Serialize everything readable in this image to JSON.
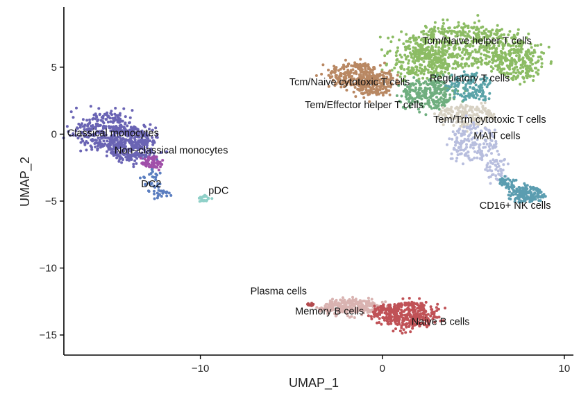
{
  "chart_data": {
    "type": "scatter",
    "title": "",
    "xlabel": "UMAP_1",
    "ylabel": "UMAP_2",
    "xlim": [
      -17.5,
      10.5
    ],
    "ylim": [
      -16.5,
      9.5
    ],
    "xticks": [
      -10,
      0,
      10
    ],
    "yticks": [
      5,
      0,
      -5,
      -10,
      -15
    ],
    "xtick_labels": [
      "−10",
      "0",
      "10"
    ],
    "ytick_labels": [
      "5",
      "0",
      "−5",
      "−10",
      "−15"
    ],
    "grid": false,
    "legend": "none",
    "series": [
      {
        "name": "Classical monocytes",
        "color": "#6a64b4",
        "n": 650,
        "ellipses": [
          {
            "cx": -15.2,
            "cy": 0.2,
            "rx": 1.7,
            "ry": 1.4,
            "w": 0.5
          },
          {
            "cx": -13.8,
            "cy": -0.8,
            "rx": 1.3,
            "ry": 1.2,
            "w": 0.5
          }
        ]
      },
      {
        "name": "Non-classical monocytes",
        "color": "#a04fa9",
        "n": 70,
        "ellipses": [
          {
            "cx": -12.6,
            "cy": -2.1,
            "rx": 0.6,
            "ry": 0.45,
            "w": 1
          }
        ]
      },
      {
        "name": "DC2",
        "color": "#5b7ec0",
        "n": 50,
        "ellipses": [
          {
            "cx": -12.7,
            "cy": -3.5,
            "rx": 0.5,
            "ry": 0.9,
            "w": 0.5
          },
          {
            "cx": -12.1,
            "cy": -4.5,
            "rx": 0.4,
            "ry": 0.35,
            "w": 0.5
          }
        ]
      },
      {
        "name": "pDC",
        "color": "#8fd0c8",
        "n": 25,
        "ellipses": [
          {
            "cx": -9.7,
            "cy": -4.8,
            "rx": 0.35,
            "ry": 0.22,
            "w": 1
          }
        ]
      },
      {
        "name": "Tcm/Naive helper T cells",
        "color": "#8cbc64",
        "n": 1000,
        "ellipses": [
          {
            "cx": 4.5,
            "cy": 6.6,
            "rx": 3.3,
            "ry": 1.5,
            "w": 0.6
          },
          {
            "cx": 2.2,
            "cy": 5.2,
            "rx": 1.5,
            "ry": 1.1,
            "w": 0.2
          },
          {
            "cx": 7.5,
            "cy": 5.2,
            "rx": 1.3,
            "ry": 1.1,
            "w": 0.2
          }
        ]
      },
      {
        "name": "Tcm/Naive cytotoxic T cells",
        "color": "#b98863",
        "n": 420,
        "ellipses": [
          {
            "cx": -1.5,
            "cy": 4.4,
            "rx": 1.4,
            "ry": 0.9,
            "w": 0.6
          },
          {
            "cx": -0.5,
            "cy": 3.7,
            "rx": 1.1,
            "ry": 0.8,
            "w": 0.4
          }
        ]
      },
      {
        "name": "Tem/Effector helper T cells",
        "color": "#6fae7f",
        "n": 260,
        "ellipses": [
          {
            "cx": 2.6,
            "cy": 3.0,
            "rx": 1.4,
            "ry": 1.1,
            "w": 1
          }
        ]
      },
      {
        "name": "Regulatory T cells",
        "color": "#5aa3a8",
        "n": 130,
        "ellipses": [
          {
            "cx": 4.8,
            "cy": 3.6,
            "rx": 1.0,
            "ry": 0.9,
            "w": 1
          }
        ]
      },
      {
        "name": "Tem/Trm cytotoxic T cells",
        "color": "#d7d1c3",
        "n": 180,
        "ellipses": [
          {
            "cx": 4.6,
            "cy": 1.4,
            "rx": 1.5,
            "ry": 0.8,
            "w": 1
          }
        ]
      },
      {
        "name": "MAIT cells",
        "color": "#b8bede",
        "n": 220,
        "ellipses": [
          {
            "cx": 5.0,
            "cy": -0.6,
            "rx": 1.3,
            "ry": 1.3,
            "w": 0.7
          },
          {
            "cx": 6.3,
            "cy": -2.6,
            "rx": 0.7,
            "ry": 0.8,
            "w": 0.3
          }
        ]
      },
      {
        "name": "CD16+ NK cells",
        "color": "#5b9db0",
        "n": 180,
        "ellipses": [
          {
            "cx": 7.9,
            "cy": -4.5,
            "rx": 0.9,
            "ry": 0.6,
            "w": 0.8
          },
          {
            "cx": 6.9,
            "cy": -3.6,
            "rx": 0.5,
            "ry": 0.4,
            "w": 0.2
          }
        ]
      },
      {
        "name": "Plasma cells",
        "color": "#b34a4e",
        "n": 12,
        "ellipses": [
          {
            "cx": -3.9,
            "cy": -12.7,
            "rx": 0.2,
            "ry": 0.12,
            "w": 1
          }
        ]
      },
      {
        "name": "Memory B cells",
        "color": "#d9b3b1",
        "n": 280,
        "ellipses": [
          {
            "cx": -1.7,
            "cy": -12.9,
            "rx": 1.5,
            "ry": 0.55,
            "w": 1
          }
        ]
      },
      {
        "name": "Naive B cells",
        "color": "#c05257",
        "n": 420,
        "ellipses": [
          {
            "cx": 1.6,
            "cy": -13.5,
            "rx": 1.3,
            "ry": 0.95,
            "w": 0.8
          },
          {
            "cx": 0.2,
            "cy": -13.3,
            "rx": 0.7,
            "ry": 0.6,
            "w": 0.2
          }
        ]
      }
    ],
    "annotations": [
      {
        "text": "Tcm/Naive helper T cells",
        "x": 5.2,
        "y": 7.0
      },
      {
        "text": "Regulatory T cells",
        "x": 4.8,
        "y": 4.2
      },
      {
        "text": "Tcm/Naive cytotoxic T cells",
        "x": -1.8,
        "y": 3.9
      },
      {
        "text": "Tem/Effector helper T cells",
        "x": -1.0,
        "y": 2.2
      },
      {
        "text": "Tem/Trm cytotoxic T cells",
        "x": 5.9,
        "y": 1.1
      },
      {
        "text": "MAIT cells",
        "x": 6.3,
        "y": -0.1
      },
      {
        "text": "Classical monocytes",
        "x": -14.8,
        "y": 0.1
      },
      {
        "text": "Non–classical monocytes",
        "x": -11.6,
        "y": -1.2
      },
      {
        "text": "DC2",
        "x": -12.7,
        "y": -3.7
      },
      {
        "text": "pDC",
        "x": -9.0,
        "y": -4.2
      },
      {
        "text": "CD16+ NK cells",
        "x": 7.3,
        "y": -5.3
      },
      {
        "text": "Plasma cells",
        "x": -5.7,
        "y": -11.7
      },
      {
        "text": "Memory B cells",
        "x": -2.9,
        "y": -13.2
      },
      {
        "text": "Naive B cells",
        "x": 3.2,
        "y": -14.0
      }
    ]
  }
}
